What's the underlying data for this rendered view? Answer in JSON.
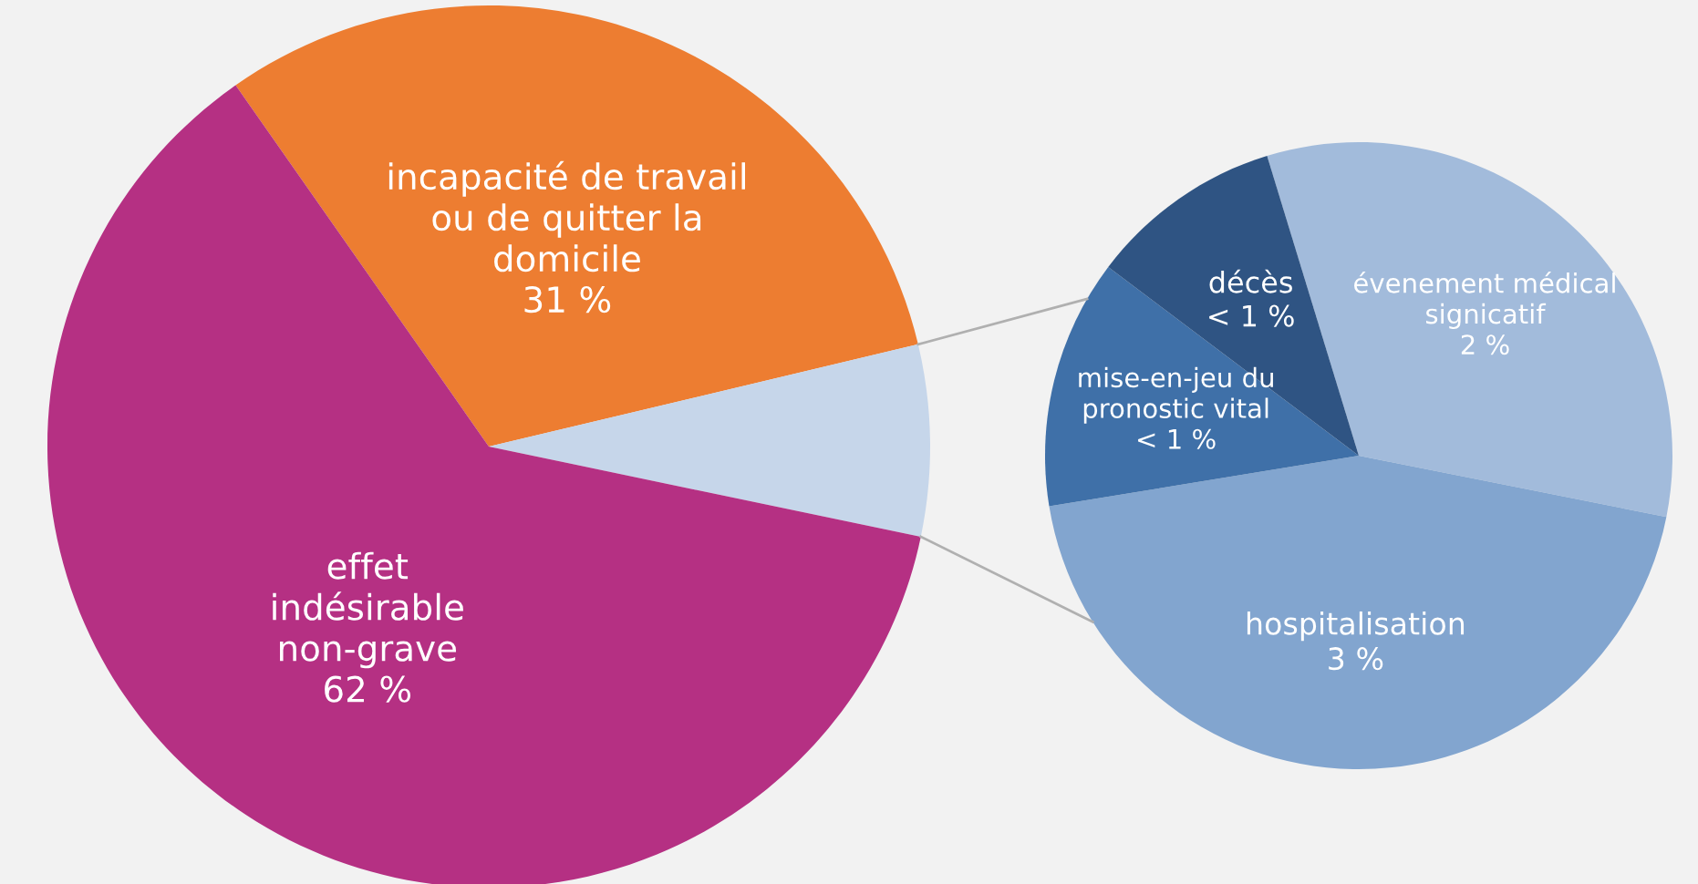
{
  "chart_data": [
    {
      "type": "pie",
      "categories": [
        "incapacité de travail\nou de quitter la\ndomicile",
        null,
        "effet\nindésirable\nnon-grave"
      ],
      "values": [
        31,
        7,
        62
      ],
      "value_labels": [
        "31 %",
        null,
        "62 %"
      ],
      "colors": [
        "#ed7d31",
        "#c6d6ea",
        "#b53083"
      ]
    },
    {
      "type": "pie",
      "categories": [
        "évenement médical\nsignicatif",
        "hospitalisation",
        "mise-en-jeu du\npronostic vital",
        "décès"
      ],
      "values": [
        2.3,
        3.1,
        0.9,
        0.7
      ],
      "value_labels": [
        "2 %",
        "3 %",
        "< 1 %",
        "< 1 %"
      ],
      "colors": [
        "#a2bbdb",
        "#82a5cf",
        "#3f70a8",
        "#2f5483"
      ]
    }
  ]
}
